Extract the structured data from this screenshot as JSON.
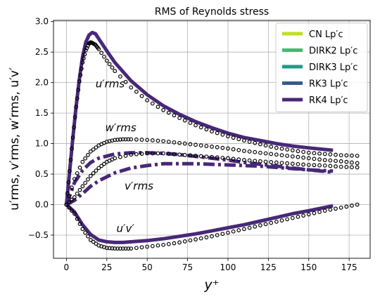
{
  "chart_data": {
    "type": "line",
    "title": "RMS of Reynolds stress",
    "xlabel": "y⁺",
    "ylabel": "u′rms, v′rms, w′rms, u′v′",
    "xlim": [
      -8,
      188
    ],
    "ylim": [
      -0.88,
      3.02
    ],
    "xticks": [
      0,
      25,
      50,
      75,
      100,
      125,
      150,
      175
    ],
    "yticks": [
      -0.5,
      0.0,
      0.5,
      1.0,
      1.5,
      2.0,
      2.5,
      3.0
    ],
    "xtick_labels": [
      "0",
      "25",
      "50",
      "75",
      "100",
      "125",
      "150",
      "175"
    ],
    "ytick_labels": [
      "−0.5",
      "0.0",
      "0.5",
      "1.0",
      "1.5",
      "2.0",
      "2.5",
      "3.0"
    ],
    "grid": true,
    "legend_position": "top-right",
    "legend": [
      {
        "label": "CN Lp′c",
        "color": "#c2df23"
      },
      {
        "label": "DIRK2 Lp′c",
        "color": "#3fbc73"
      },
      {
        "label": "DIRK3 Lp′c",
        "color": "#1f9a8a"
      },
      {
        "label": "RK3 Lp′c",
        "color": "#365c8d"
      },
      {
        "label": "RK4 Lp′c",
        "color": "#482878"
      }
    ],
    "annotations": [
      {
        "text": "u′rms",
        "x": 18,
        "y": 1.92
      },
      {
        "text": "w′rms",
        "x": 24,
        "y": 1.2
      },
      {
        "text": "v′rms",
        "x": 36,
        "y": 0.25
      },
      {
        "text": "u′v′",
        "x": 31,
        "y": -0.45
      }
    ],
    "series": [
      {
        "line": "solid",
        "color": "#482878",
        "x": [
          0,
          2,
          4,
          6,
          8,
          10,
          12,
          14,
          16,
          18,
          20,
          25,
          30,
          40,
          50,
          60,
          70,
          80,
          90,
          100,
          110,
          120,
          130,
          140,
          150,
          165
        ],
        "y": [
          0,
          0.55,
          1.1,
          1.6,
          2.05,
          2.42,
          2.66,
          2.78,
          2.82,
          2.8,
          2.72,
          2.52,
          2.33,
          2.03,
          1.8,
          1.62,
          1.48,
          1.36,
          1.26,
          1.17,
          1.1,
          1.05,
          1.0,
          0.96,
          0.93,
          0.89
        ]
      },
      {
        "line": "dashdot",
        "color": "#482878",
        "x": [
          0,
          5,
          10,
          15,
          20,
          30,
          40,
          50,
          60,
          70,
          80,
          90,
          100,
          110,
          120,
          130,
          140,
          150,
          165
        ],
        "y": [
          0,
          0.36,
          0.56,
          0.69,
          0.76,
          0.83,
          0.85,
          0.85,
          0.84,
          0.82,
          0.79,
          0.76,
          0.73,
          0.69,
          0.66,
          0.63,
          0.6,
          0.57,
          0.53
        ]
      },
      {
        "line": "dashdot",
        "color": "#482878",
        "x": [
          0,
          5,
          10,
          15,
          20,
          30,
          40,
          50,
          60,
          70,
          80,
          90,
          100,
          110,
          120,
          130,
          140,
          150,
          165
        ],
        "y": [
          0,
          0.07,
          0.18,
          0.3,
          0.39,
          0.52,
          0.6,
          0.64,
          0.67,
          0.67,
          0.67,
          0.66,
          0.65,
          0.64,
          0.63,
          0.61,
          0.59,
          0.57,
          0.55
        ]
      },
      {
        "line": "solid",
        "color": "#482878",
        "x": [
          0,
          5,
          10,
          15,
          20,
          25,
          30,
          35,
          40,
          50,
          60,
          70,
          80,
          90,
          100,
          110,
          120,
          130,
          140,
          150,
          165
        ],
        "y": [
          0,
          -0.12,
          -0.33,
          -0.49,
          -0.58,
          -0.61,
          -0.62,
          -0.62,
          -0.61,
          -0.59,
          -0.56,
          -0.52,
          -0.48,
          -0.43,
          -0.38,
          -0.33,
          -0.27,
          -0.21,
          -0.15,
          -0.1,
          -0.02
        ]
      },
      {
        "line": "circles",
        "color": "#000000",
        "x": [
          0,
          2,
          4,
          6,
          8,
          10,
          12,
          14,
          15,
          16,
          18,
          20,
          25,
          30,
          40,
          50,
          60,
          70,
          80,
          90,
          100,
          110,
          120,
          130,
          140,
          150,
          160,
          170,
          180
        ],
        "y": [
          0,
          0.55,
          1.1,
          1.6,
          2.02,
          2.33,
          2.53,
          2.64,
          2.66,
          2.65,
          2.62,
          2.55,
          2.36,
          2.19,
          1.92,
          1.71,
          1.55,
          1.42,
          1.3,
          1.2,
          1.12,
          1.05,
          0.99,
          0.93,
          0.89,
          0.85,
          0.83,
          0.81,
          0.8
        ]
      },
      {
        "line": "circles",
        "color": "#000000",
        "x": [
          0,
          5,
          10,
          15,
          20,
          25,
          30,
          35,
          40,
          50,
          60,
          70,
          80,
          90,
          100,
          110,
          120,
          130,
          140,
          150,
          160,
          170,
          180
        ],
        "y": [
          0,
          0.42,
          0.7,
          0.87,
          0.97,
          1.03,
          1.06,
          1.07,
          1.07,
          1.06,
          1.04,
          1.01,
          0.98,
          0.95,
          0.92,
          0.88,
          0.85,
          0.82,
          0.79,
          0.76,
          0.73,
          0.71,
          0.68
        ]
      },
      {
        "line": "circles",
        "color": "#000000",
        "x": [
          0,
          5,
          10,
          15,
          20,
          25,
          30,
          40,
          50,
          60,
          70,
          80,
          90,
          100,
          110,
          120,
          130,
          140,
          150,
          160,
          170,
          180
        ],
        "y": [
          0,
          0.12,
          0.3,
          0.47,
          0.6,
          0.7,
          0.76,
          0.82,
          0.84,
          0.84,
          0.82,
          0.8,
          0.78,
          0.76,
          0.73,
          0.71,
          0.69,
          0.67,
          0.65,
          0.64,
          0.62,
          0.61
        ]
      },
      {
        "line": "circles",
        "color": "#000000",
        "x": [
          0,
          5,
          10,
          15,
          20,
          25,
          30,
          35,
          40,
          50,
          60,
          70,
          80,
          90,
          100,
          110,
          120,
          130,
          140,
          150,
          160,
          170,
          180
        ],
        "y": [
          0,
          -0.15,
          -0.4,
          -0.58,
          -0.67,
          -0.71,
          -0.72,
          -0.72,
          -0.72,
          -0.69,
          -0.66,
          -0.62,
          -0.57,
          -0.52,
          -0.46,
          -0.4,
          -0.34,
          -0.28,
          -0.22,
          -0.16,
          -0.1,
          -0.05,
          0.0
        ]
      }
    ]
  }
}
